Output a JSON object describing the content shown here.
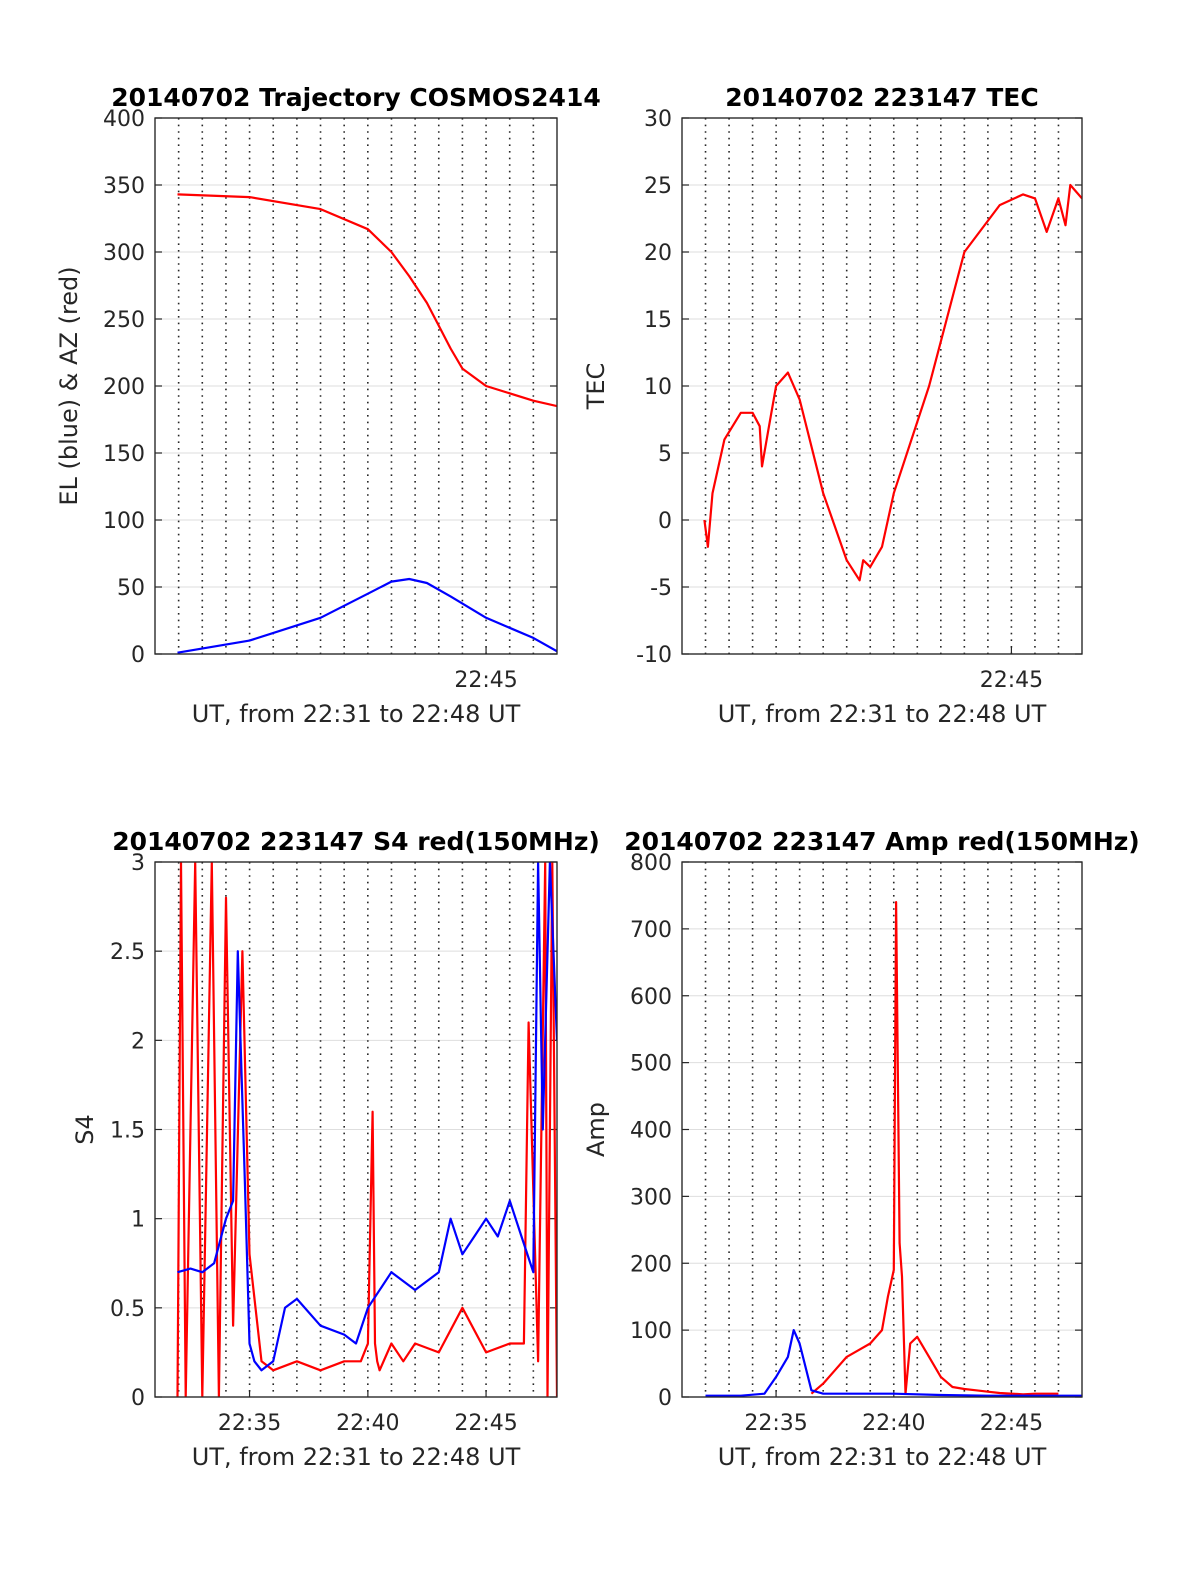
{
  "chart_data": [
    {
      "type": "line",
      "title": "20140702 Trajectory COSMOS2414",
      "xlabel": "UT, from 22:31 to 22:48 UT",
      "ylabel": "EL (blue) & AZ (red)",
      "xlim": [
        "22:31",
        "22:48"
      ],
      "ylim": [
        0,
        400
      ],
      "yticks": [
        "0",
        "50",
        "100",
        "150",
        "200",
        "250",
        "300",
        "350",
        "400"
      ],
      "xticks": [
        {
          "x": 22.75,
          "label": "22:45"
        }
      ],
      "grid": true,
      "series": [
        {
          "color": "#ff0000",
          "x": [
            22.5325,
            22.5833,
            22.6333,
            22.6667,
            22.6833,
            22.6958,
            22.7083,
            22.7167,
            22.725,
            22.7333,
            22.75,
            22.7833,
            22.8
          ],
          "y": [
            343,
            341,
            332,
            317,
            300,
            282,
            262,
            245,
            228,
            213,
            200,
            189,
            185
          ]
        },
        {
          "color": "#0000ff",
          "x": [
            22.5325,
            22.5833,
            22.6333,
            22.6667,
            22.6833,
            22.6958,
            22.7083,
            22.725,
            22.75,
            22.7833,
            22.8
          ],
          "y": [
            1,
            10,
            27,
            45,
            54,
            56,
            53,
            43,
            27,
            12,
            2
          ]
        }
      ]
    },
    {
      "type": "line",
      "title": "20140702 223147 TEC",
      "xlabel": "UT, from 22:31 to 22:48 UT",
      "ylabel": "TEC",
      "xlim": [
        "22:31",
        "22:48"
      ],
      "ylim": [
        -10,
        30
      ],
      "yticks": [
        "-10",
        "-5",
        "0",
        "5",
        "10",
        "15",
        "20",
        "25",
        "30"
      ],
      "xticks": [
        {
          "x": 22.75,
          "label": "22:45"
        }
      ],
      "grid": true,
      "series": [
        {
          "color": "#ff0000",
          "x": [
            22.5325,
            22.535,
            22.5383,
            22.5467,
            22.5583,
            22.5667,
            22.5717,
            22.5733,
            22.5783,
            22.5833,
            22.5917,
            22.6,
            22.6167,
            22.6333,
            22.6425,
            22.645,
            22.65,
            22.6583,
            22.6667,
            22.6917,
            22.7167,
            22.7417,
            22.7583,
            22.7667,
            22.775,
            22.7833,
            22.7883,
            22.7917,
            22.8
          ],
          "y": [
            0,
            -2,
            2,
            6,
            8,
            8,
            7,
            4,
            7,
            10,
            11,
            9,
            2,
            -3,
            -4.5,
            -3,
            -3.5,
            -2,
            2,
            10,
            20,
            23.5,
            24.3,
            24,
            21.5,
            24,
            22,
            25,
            24
          ]
        }
      ]
    },
    {
      "type": "line",
      "title": "20140702 223147 S4 red(150MHz)",
      "xlabel": "UT, from 22:31 to 22:48 UT",
      "ylabel": "S4",
      "xlim": [
        "22:31",
        "22:48"
      ],
      "ylim": [
        0,
        3
      ],
      "yticks": [
        "0",
        "0.5",
        "1",
        "1.5",
        "2",
        "2.5",
        "3"
      ],
      "xticks": [
        {
          "x": 22.5833,
          "label": "22:35"
        },
        {
          "x": 22.6667,
          "label": "22:40"
        },
        {
          "x": 22.75,
          "label": "22:45"
        }
      ],
      "grid": true,
      "series": [
        {
          "color": "#ff0000",
          "x": [
            22.5325,
            22.535,
            22.5383,
            22.545,
            22.55,
            22.5567,
            22.5617,
            22.5667,
            22.5717,
            22.5783,
            22.5833,
            22.5917,
            22.6,
            22.6167,
            22.6333,
            22.65,
            22.6617,
            22.6667,
            22.67,
            22.6717,
            22.6733,
            22.675,
            22.6833,
            22.6917,
            22.7,
            22.7167,
            22.7333,
            22.75,
            22.7667,
            22.7767,
            22.78,
            22.7867,
            22.7917,
            22.7933,
            22.7967,
            22.8
          ],
          "y": [
            0,
            3,
            0,
            3,
            0,
            3,
            0,
            2.8,
            0.4,
            2.5,
            0.8,
            0.2,
            0.15,
            0.2,
            0.15,
            0.2,
            0.2,
            0.3,
            1.6,
            0.3,
            0.2,
            0.15,
            0.3,
            0.2,
            0.3,
            0.25,
            0.5,
            0.25,
            0.3,
            0.3,
            2.1,
            0.2,
            3,
            0,
            3,
            0
          ]
        },
        {
          "color": "#0000ff",
          "x": [
            22.5325,
            22.5417,
            22.55,
            22.5583,
            22.5667,
            22.5717,
            22.575,
            22.58,
            22.5833,
            22.5867,
            22.5917,
            22.6,
            22.6083,
            22.6167,
            22.6333,
            22.65,
            22.6583,
            22.6667,
            22.6833,
            22.7,
            22.7167,
            22.725,
            22.7333,
            22.7417,
            22.75,
            22.7583,
            22.7667,
            22.775,
            22.7833,
            22.7867,
            22.79,
            22.795,
            22.8
          ],
          "y": [
            0.7,
            0.72,
            0.7,
            0.75,
            1,
            1.1,
            2.5,
            1.2,
            0.3,
            0.2,
            0.15,
            0.2,
            0.5,
            0.55,
            0.4,
            0.35,
            0.3,
            0.5,
            0.7,
            0.6,
            0.7,
            1,
            0.8,
            0.9,
            1,
            0.9,
            1.1,
            0.9,
            0.7,
            3,
            1.5,
            3,
            2
          ]
        }
      ]
    },
    {
      "type": "line",
      "title": "20140702 223147 Amp red(150MHz)",
      "xlabel": "UT, from 22:31 to 22:48 UT",
      "ylabel": "Amp",
      "xlim": [
        "22:31",
        "22:48"
      ],
      "ylim": [
        0,
        800
      ],
      "yticks": [
        "0",
        "100",
        "200",
        "300",
        "400",
        "500",
        "600",
        "700",
        "800"
      ],
      "xticks": [
        {
          "x": 22.5833,
          "label": "22:35"
        },
        {
          "x": 22.6667,
          "label": "22:40"
        },
        {
          "x": 22.75,
          "label": "22:45"
        }
      ],
      "grid": true,
      "series": [
        {
          "color": "#ff0000",
          "x": [
            22.6083,
            22.6167,
            22.625,
            22.6333,
            22.6417,
            22.65,
            22.6583,
            22.6625,
            22.6667,
            22.6683,
            22.6708,
            22.6725,
            22.675,
            22.6783,
            22.6833,
            22.6917,
            22.7,
            22.7083,
            22.7167,
            22.725,
            22.7333,
            22.7417,
            22.7583,
            22.7667,
            22.7833
          ],
          "y": [
            5,
            20,
            40,
            60,
            70,
            80,
            100,
            150,
            190,
            740,
            230,
            180,
            5,
            80,
            90,
            60,
            30,
            15,
            12,
            10,
            8,
            6,
            4,
            5,
            5
          ]
        },
        {
          "color": "#0000ff",
          "x": [
            22.5333,
            22.5583,
            22.575,
            22.5833,
            22.5917,
            22.5958,
            22.6,
            22.6083,
            22.6167,
            22.6333,
            22.6667,
            22.7,
            22.7333,
            22.7667,
            22.8
          ],
          "y": [
            2,
            2,
            5,
            30,
            60,
            100,
            80,
            10,
            5,
            5,
            5,
            3,
            2,
            2,
            2
          ]
        }
      ]
    }
  ]
}
